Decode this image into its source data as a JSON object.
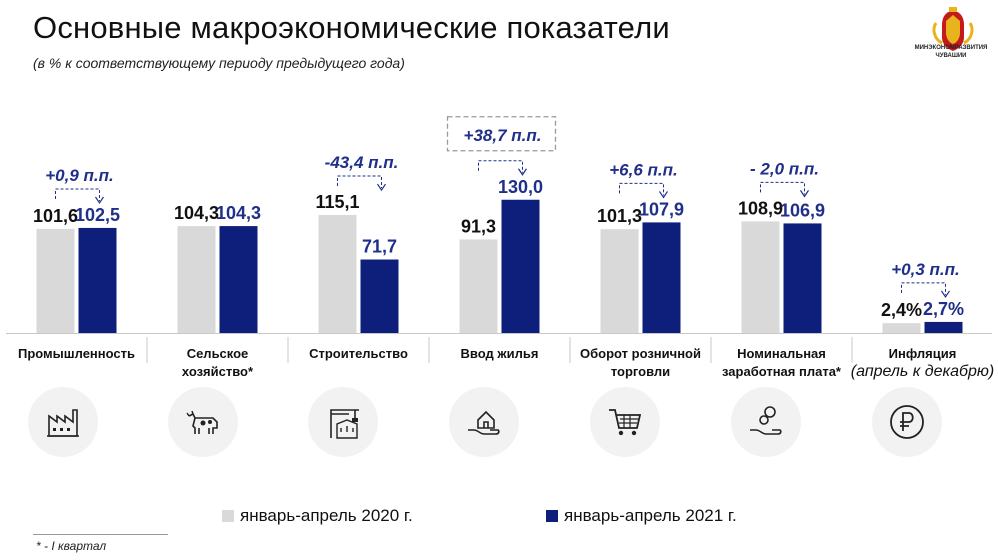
{
  "header": {
    "title": "Основные макроэкономические показатели",
    "subtitle": "(в % к соответствующему периоду предыдущего года)"
  },
  "logo": {
    "text": "МИНЭКОНОМРАЗВИТИЯ ЧУВАШИИ"
  },
  "legend": {
    "items": [
      {
        "label": "январь-апрель 2020 г.",
        "color": "#d9d9d9"
      },
      {
        "label": "январь-апрель 2021 г.",
        "color": "#0d1f7a"
      }
    ]
  },
  "footnote": "* - I квартал",
  "icons": [
    "factory-icon",
    "cow-icon",
    "construction-crane-icon",
    "house-in-hand-icon",
    "shopping-cart-icon",
    "coins-in-hand-icon",
    "ruble-sign-icon"
  ],
  "chart_data": {
    "type": "bar",
    "categories": [
      "Промышленность",
      "Сельское хозяйство*",
      "Строительство",
      "Ввод жилья",
      "Оборот розничной торговли",
      "Номинальная заработная плата*",
      "Инфляция"
    ],
    "category_lines": [
      [
        "Промышленность"
      ],
      [
        "Сельское",
        "хозяйство*"
      ],
      [
        "Строительство"
      ],
      [
        "Ввод жилья"
      ],
      [
        "Оборот розничной",
        "торговли"
      ],
      [
        "Номинальная",
        "заработная плата*"
      ],
      [
        "Инфляция",
        "(апрель к декабрю)"
      ]
    ],
    "series": [
      {
        "name": "январь-апрель 2020 г.",
        "values": [
          101.6,
          104.3,
          115.1,
          91.3,
          101.3,
          108.9,
          2.4
        ],
        "labels": [
          "101,6",
          "104,3",
          "115,1",
          "91,3",
          "101,3",
          "108,9",
          "2,4%"
        ],
        "color": "#d9d9d9"
      },
      {
        "name": "январь-апрель 2021 г.",
        "values": [
          102.5,
          104.3,
          71.7,
          130.0,
          107.9,
          106.9,
          2.7
        ],
        "labels": [
          "102,5",
          "104,3",
          "71,7",
          "130,0",
          "107,9",
          "106,9",
          "2,7%"
        ],
        "color": "#0d1f7a"
      }
    ],
    "annotations": [
      "+0,9 п.п.",
      "",
      "-43,4 п.п.",
      "+38,7 п.п.",
      "+6,6 п.п.",
      "- 2,0 п.п.",
      "+0,3 п.п."
    ],
    "highlighted_annotation_index": 3,
    "label_color": "#1f2f8a",
    "grid": false
  }
}
